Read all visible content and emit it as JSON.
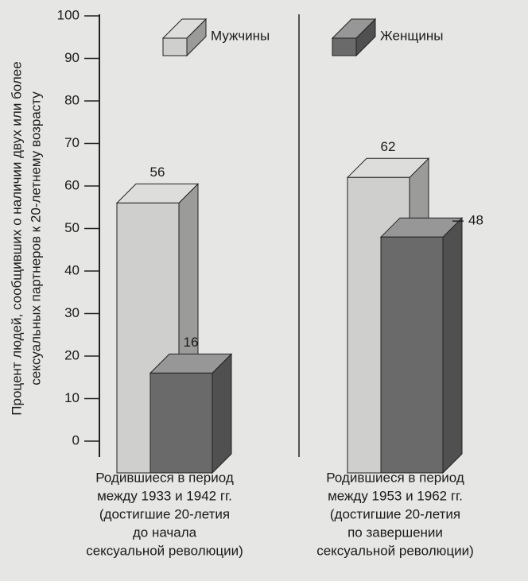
{
  "chart_data": {
    "type": "bar3d",
    "y_label": [
      "Процент людей, сообщивших о наличии двух или более",
      "сексуальных партнеров к 20-летнему возрасту"
    ],
    "categories": [
      [
        "Родившиеся в период",
        "между 1933 и 1942 гг.",
        "(достигшие 20-летия",
        "до начала",
        "сексуальной революции)"
      ],
      [
        "Родившиеся в период",
        "между 1953 и 1962 гг.",
        "(достигшие 20-летия",
        "по завершении",
        "сексуальной революции)"
      ]
    ],
    "series": [
      {
        "name": "Мужчины",
        "color": "#cfcfcd",
        "values": [
          56,
          62
        ]
      },
      {
        "name": "Женщины",
        "color": "#6a6a6a",
        "values": [
          16,
          48
        ]
      }
    ],
    "ylim": [
      0,
      100
    ],
    "yticks": [
      0,
      10,
      20,
      30,
      40,
      50,
      60,
      70,
      80,
      90,
      100
    ]
  }
}
